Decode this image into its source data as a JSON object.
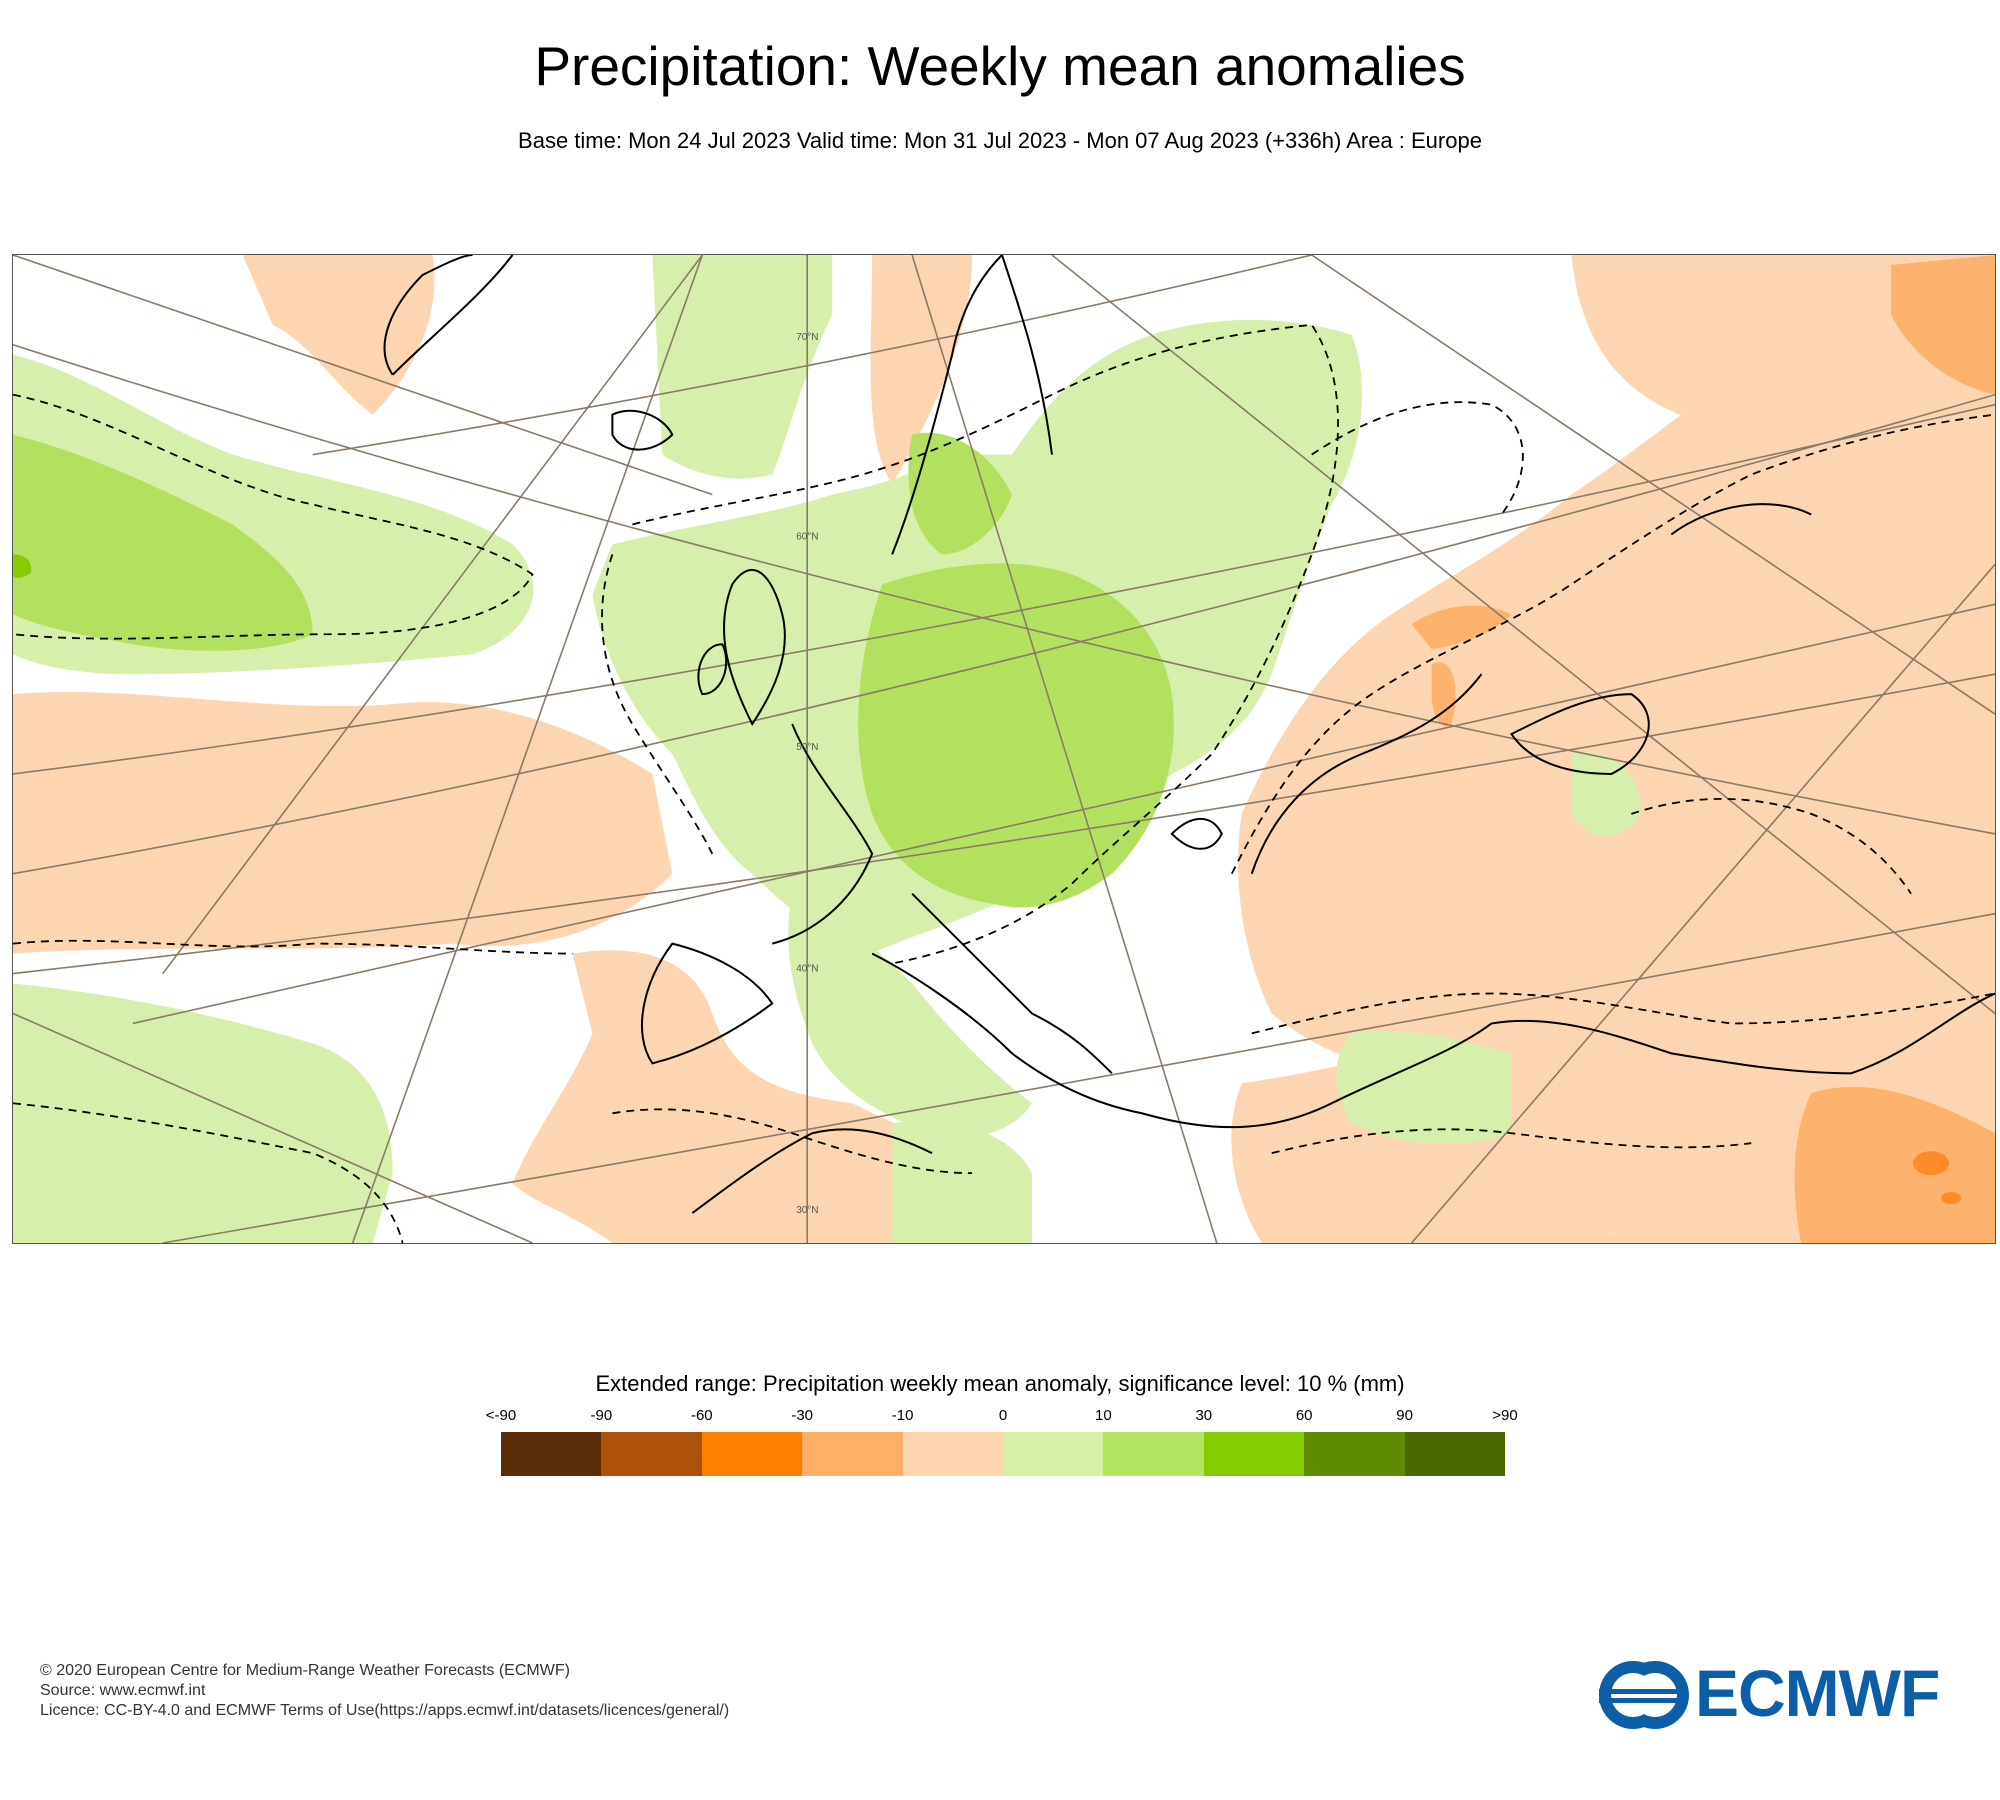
{
  "header": {
    "title": "Precipitation: Weekly mean anomalies",
    "subtitle": "Base time: Mon 24 Jul 2023 Valid time: Mon 31 Jul 2023 - Mon 07 Aug 2023 (+336h) Area : Europe"
  },
  "map": {
    "latitude_labels": [
      "70°N",
      "60°N",
      "50°N",
      "40°N",
      "30°N"
    ],
    "fill_colors": {
      "light_green": "#d6efab",
      "mid_green": "#b3e05f",
      "light_orange": "#fdd5b0",
      "mid_orange": "#fdb36e",
      "orange": "#fe8b27"
    }
  },
  "legend": {
    "title": "Extended range: Precipitation weekly mean anomaly, significance level: 10 % (mm)",
    "tick_labels": [
      "<-90",
      "-90",
      "-60",
      "-30",
      "-10",
      "0",
      "10",
      "30",
      "60",
      "90",
      ">90"
    ],
    "colors": [
      "#5a2c08",
      "#ab5207",
      "#fe8000",
      "#feb166",
      "#fed6ad",
      "#d7f0a4",
      "#b3e45f",
      "#84cb00",
      "#5f8c00",
      "#4b6800"
    ]
  },
  "footer": {
    "line1": "© 2020 European Centre for Medium-Range Weather Forecasts (ECMWF)",
    "line2": "Source: www.ecmwf.int",
    "line3": "Licence: CC-BY-4.0 and ECMWF Terms of Use(https://apps.ecmwf.int/datasets/licences/general/)"
  },
  "logo": {
    "text": "ECMWF",
    "color": "#0c5fa6"
  }
}
